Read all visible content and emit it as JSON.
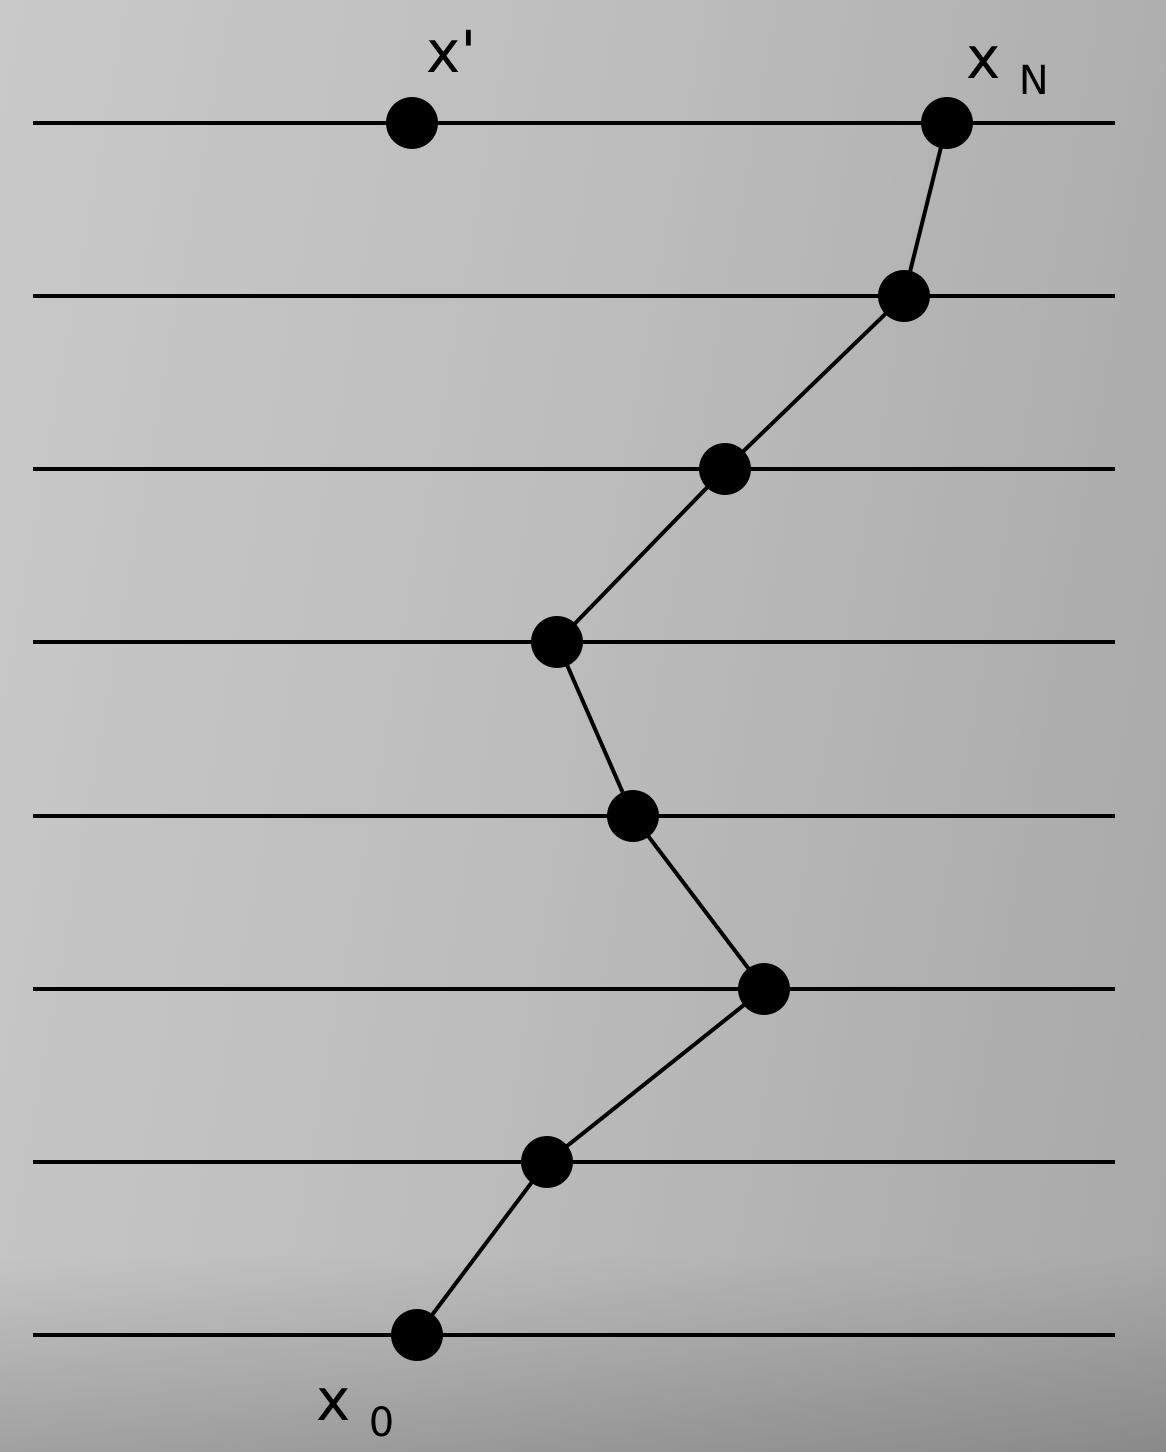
{
  "diagram": {
    "labels": {
      "x_prime": "x'",
      "x_n_base": "x",
      "x_n_sub": "N",
      "x_0_base": "x",
      "x_0_sub": "0"
    },
    "level_count": 8,
    "colors": {
      "line": "#000000",
      "node": "#000000",
      "background_light": "#c9c9c9",
      "background_dark": "#a8a8a8"
    }
  }
}
